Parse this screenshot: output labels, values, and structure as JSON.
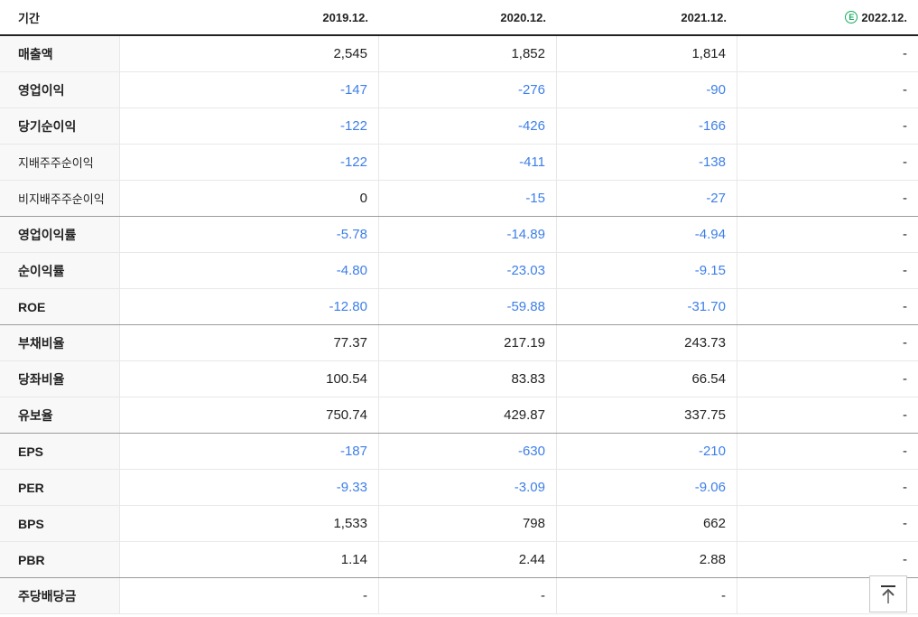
{
  "header": {
    "period_label": "기간",
    "periods": [
      {
        "label": "2019.12.",
        "estimate": false
      },
      {
        "label": "2020.12.",
        "estimate": false
      },
      {
        "label": "2021.12.",
        "estimate": false
      },
      {
        "label": "2022.12.",
        "estimate": true
      }
    ],
    "estimate_icon_letter": "E"
  },
  "colors": {
    "negative_value_blue": "#3d7fe8",
    "estimate_green": "#15ab5e",
    "header_border": "#222222",
    "group_border": "#9b9b9b",
    "row_border": "#e8e8e8",
    "label_column_bg": "#f8f8f8",
    "text": "#222222"
  },
  "rows": [
    {
      "label": "매출액",
      "style": "main",
      "group_end": false,
      "values": [
        "2,545",
        "1,852",
        "1,814",
        "-"
      ]
    },
    {
      "label": "영업이익",
      "style": "main",
      "group_end": false,
      "values": [
        "-147",
        "-276",
        "-90",
        "-"
      ]
    },
    {
      "label": "당기순이익",
      "style": "main",
      "group_end": false,
      "values": [
        "-122",
        "-426",
        "-166",
        "-"
      ]
    },
    {
      "label": "지배주주순이익",
      "style": "sub",
      "group_end": false,
      "values": [
        "-122",
        "-411",
        "-138",
        "-"
      ]
    },
    {
      "label": "비지배주주순이익",
      "style": "sub",
      "group_end": true,
      "values": [
        "0",
        "-15",
        "-27",
        "-"
      ]
    },
    {
      "label": "영업이익률",
      "style": "main",
      "group_end": false,
      "values": [
        "-5.78",
        "-14.89",
        "-4.94",
        "-"
      ]
    },
    {
      "label": "순이익률",
      "style": "main",
      "group_end": false,
      "values": [
        "-4.80",
        "-23.03",
        "-9.15",
        "-"
      ]
    },
    {
      "label": "ROE",
      "style": "main",
      "group_end": true,
      "values": [
        "-12.80",
        "-59.88",
        "-31.70",
        "-"
      ]
    },
    {
      "label": "부채비율",
      "style": "main",
      "group_end": false,
      "values": [
        "77.37",
        "217.19",
        "243.73",
        "-"
      ]
    },
    {
      "label": "당좌비율",
      "style": "main",
      "group_end": false,
      "values": [
        "100.54",
        "83.83",
        "66.54",
        "-"
      ]
    },
    {
      "label": "유보율",
      "style": "main",
      "group_end": true,
      "values": [
        "750.74",
        "429.87",
        "337.75",
        "-"
      ]
    },
    {
      "label": "EPS",
      "style": "main",
      "group_end": false,
      "values": [
        "-187",
        "-630",
        "-210",
        "-"
      ]
    },
    {
      "label": "PER",
      "style": "main",
      "group_end": false,
      "values": [
        "-9.33",
        "-3.09",
        "-9.06",
        "-"
      ]
    },
    {
      "label": "BPS",
      "style": "main",
      "group_end": false,
      "values": [
        "1,533",
        "798",
        "662",
        "-"
      ]
    },
    {
      "label": "PBR",
      "style": "main",
      "group_end": true,
      "values": [
        "1.14",
        "2.44",
        "2.88",
        "-"
      ]
    },
    {
      "label": "주당배당금",
      "style": "main",
      "group_end": false,
      "values": [
        "-",
        "-",
        "-",
        "-"
      ]
    }
  ],
  "scroll_top_button": {
    "icon": "scroll-to-top-arrow"
  }
}
